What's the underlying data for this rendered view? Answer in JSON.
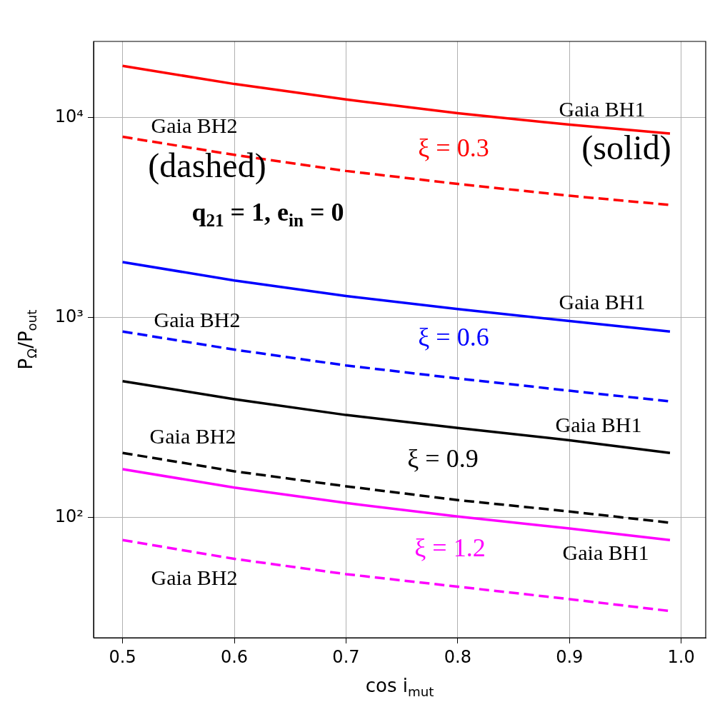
{
  "chart_data": {
    "type": "line",
    "xlabel": "cos i$_{mut}$",
    "ylabel": "P$_{Ω}$/P$_{out}$",
    "x": [
      0.5,
      0.6,
      0.7,
      0.8,
      0.9,
      0.99
    ],
    "series": [
      {
        "color": "#ff0000",
        "line_style": "solid",
        "values": [
          18100,
          14700,
          12300,
          10500,
          9200,
          8300
        ]
      },
      {
        "color": "#ff0000",
        "line_style": "dashed",
        "values": [
          8000,
          6500,
          5400,
          4650,
          4060,
          3650
        ]
      },
      {
        "color": "#0000ff",
        "line_style": "solid",
        "values": [
          1890,
          1530,
          1280,
          1100,
          960,
          850
        ]
      },
      {
        "color": "#0000ff",
        "line_style": "dashed",
        "values": [
          850,
          690,
          575,
          495,
          430,
          380
        ]
      },
      {
        "color": "#000000",
        "line_style": "solid",
        "values": [
          480,
          390,
          325,
          280,
          243,
          210
        ]
      },
      {
        "color": "#000000",
        "line_style": "dashed",
        "values": [
          210,
          170,
          143,
          122,
          107,
          94
        ]
      },
      {
        "color": "#ff00ff",
        "line_style": "solid",
        "values": [
          174,
          141,
          118,
          101,
          88,
          77
        ]
      },
      {
        "color": "#ff00ff",
        "line_style": "dashed",
        "values": [
          77,
          62,
          52,
          45,
          39,
          34
        ]
      }
    ],
    "log": "y",
    "xlim": [
      0.474,
      1.022
    ],
    "ylim": [
      25,
      24000
    ],
    "xticks": [
      0.5,
      0.6,
      0.7,
      0.8,
      0.9,
      {
        "value": 1,
        "label": "1.0"
      }
    ],
    "yticks": [
      {
        "value": 100,
        "label": "10²"
      },
      {
        "value": 1000,
        "label": "10³"
      },
      {
        "value": 10000,
        "label": "10⁴"
      }
    ],
    "grid": true,
    "legend": false,
    "marker": "none",
    "annotations": [
      "Gaia BH1",
      "Gaia BH2",
      "(dashed)",
      "(solid)",
      "ξ = 0.3",
      "q$_{21}$ = 1, e$_{in}$ = 0",
      "Gaia BH1",
      "Gaia BH2",
      "ξ = 0.6",
      "Gaia BH1",
      "Gaia BH2",
      "ξ = 0.9",
      "Gaia BH1",
      "Gaia BH2",
      "ξ = 1.2"
    ]
  }
}
